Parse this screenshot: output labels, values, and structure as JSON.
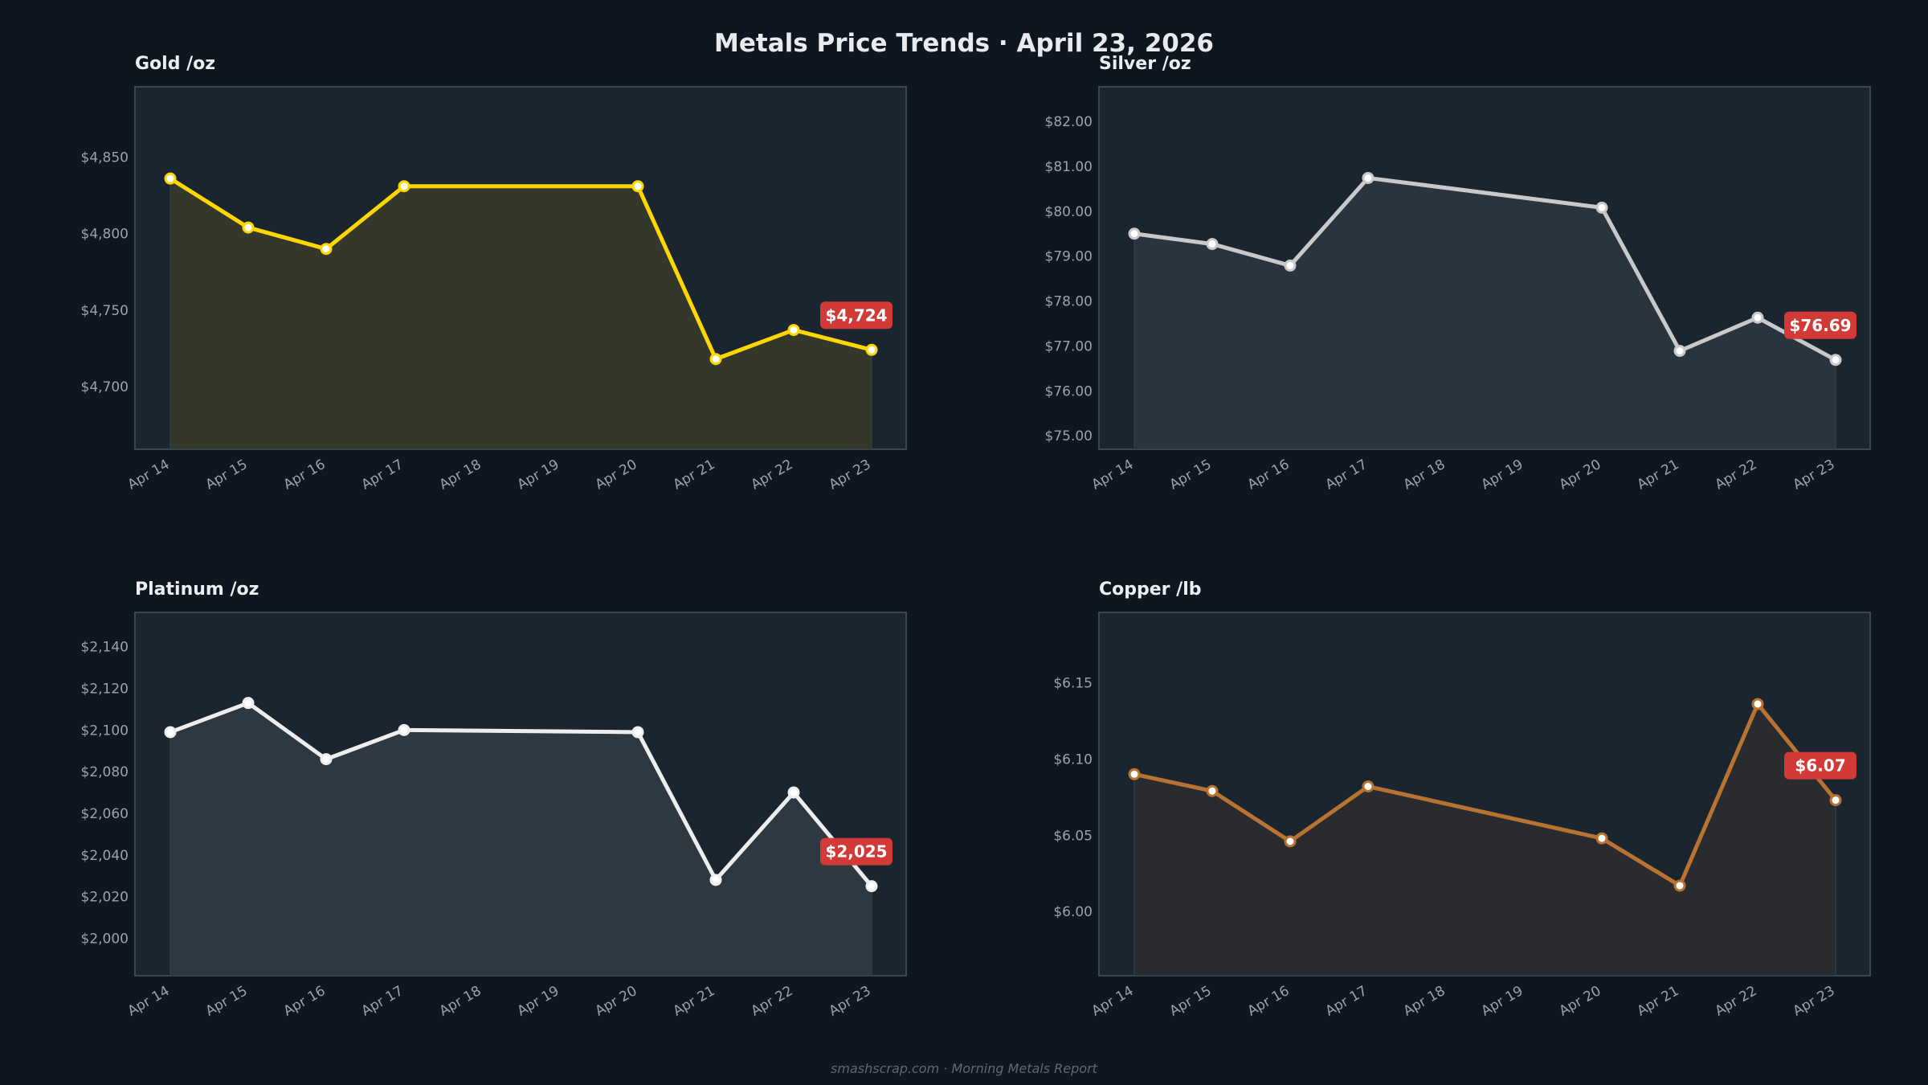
{
  "title": "Metals Price Trends  ·  April 23, 2026",
  "footer": "smashscrap.com  ·  Morning Metals Report",
  "chart_data": [
    {
      "type": "line",
      "title": "Gold  /oz",
      "x_ticks": [
        "Apr 14",
        "Apr 15",
        "Apr 16",
        "Apr 17",
        "Apr 18",
        "Apr 19",
        "Apr 20",
        "Apr 21",
        "Apr 22",
        "Apr 23"
      ],
      "x": [
        "Apr 14",
        "Apr 15",
        "Apr 16",
        "Apr 17",
        "Apr 20",
        "Apr 21",
        "Apr 22",
        "Apr 23"
      ],
      "values": [
        4836,
        4804,
        4790,
        4831,
        4831,
        4718,
        4737,
        4724
      ],
      "y_ticks": [
        4700,
        4750,
        4800,
        4850
      ],
      "y_tick_labels": [
        "$4,700",
        "$4,750",
        "$4,800",
        "$4,850"
      ],
      "ylim": [
        4659,
        4896
      ],
      "last_label": "$4,724",
      "line_color": "#ffd700",
      "fill_color": "#33382a",
      "grid": false
    },
    {
      "type": "line",
      "title": "Silver  /oz",
      "x_ticks": [
        "Apr 14",
        "Apr 15",
        "Apr 16",
        "Apr 17",
        "Apr 18",
        "Apr 19",
        "Apr 20",
        "Apr 21",
        "Apr 22",
        "Apr 23"
      ],
      "x": [
        "Apr 14",
        "Apr 15",
        "Apr 16",
        "Apr 17",
        "Apr 20",
        "Apr 21",
        "Apr 22",
        "Apr 23"
      ],
      "values": [
        79.5,
        79.27,
        78.79,
        80.74,
        80.08,
        76.89,
        77.63,
        76.69
      ],
      "y_ticks": [
        75,
        76,
        77,
        78,
        79,
        80,
        81,
        82
      ],
      "y_tick_labels": [
        "$75.00",
        "$76.00",
        "$77.00",
        "$78.00",
        "$79.00",
        "$80.00",
        "$81.00",
        "$82.00"
      ],
      "ylim": [
        74.7,
        82.77
      ],
      "last_label": "$76.69",
      "line_color": "#c9c9c9",
      "fill_color": "#2a343f",
      "grid": false
    },
    {
      "type": "line",
      "title": "Platinum  /oz",
      "x_ticks": [
        "Apr 14",
        "Apr 15",
        "Apr 16",
        "Apr 17",
        "Apr 18",
        "Apr 19",
        "Apr 20",
        "Apr 21",
        "Apr 22",
        "Apr 23"
      ],
      "x": [
        "Apr 14",
        "Apr 15",
        "Apr 16",
        "Apr 17",
        "Apr 20",
        "Apr 21",
        "Apr 22",
        "Apr 23"
      ],
      "values": [
        2099,
        2113,
        2086,
        2100,
        2099,
        2028,
        2070,
        2025
      ],
      "y_ticks": [
        2000,
        2020,
        2040,
        2060,
        2080,
        2100,
        2120,
        2140
      ],
      "y_tick_labels": [
        "$2,000",
        "$2,020",
        "$2,040",
        "$2,060",
        "$2,080",
        "$2,100",
        "$2,120",
        "$2,140"
      ],
      "ylim": [
        1982,
        2156.5
      ],
      "last_label": "$2,025",
      "line_color": "#eeeeee",
      "fill_color": "#2e3840",
      "grid": false
    },
    {
      "type": "line",
      "title": "Copper  /lb",
      "x_ticks": [
        "Apr 14",
        "Apr 15",
        "Apr 16",
        "Apr 17",
        "Apr 18",
        "Apr 19",
        "Apr 20",
        "Apr 21",
        "Apr 22",
        "Apr 23"
      ],
      "x": [
        "Apr 14",
        "Apr 15",
        "Apr 16",
        "Apr 17",
        "Apr 20",
        "Apr 21",
        "Apr 22",
        "Apr 23"
      ],
      "values": [
        6.09,
        6.079,
        6.046,
        6.082,
        6.048,
        6.017,
        6.136,
        6.073
      ],
      "y_ticks": [
        6.0,
        6.05,
        6.1,
        6.15
      ],
      "y_tick_labels": [
        "$6.00",
        "$6.05",
        "$6.10",
        "$6.15"
      ],
      "ylim": [
        5.958,
        6.196
      ],
      "last_label": "$6.07",
      "line_color": "#b87333",
      "fill_color": "#2a2b2e",
      "grid": false
    }
  ],
  "colors": {
    "background": "#0e1620",
    "plot_background": "#1b2530",
    "plot_border": "#3a4652",
    "badge": "#d13a36"
  }
}
